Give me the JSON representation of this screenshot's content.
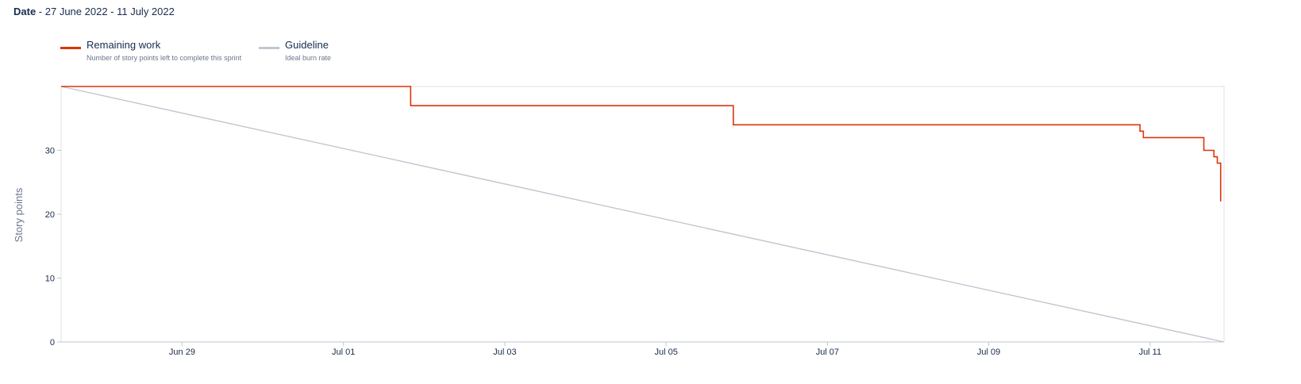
{
  "header": {
    "date_label": "Date",
    "separator": " - ",
    "date_range": "27 June 2022 - 11 July 2022"
  },
  "legend": [
    {
      "title": "Remaining work",
      "description": "Number of story points left to complete this sprint",
      "color": "#de350b"
    },
    {
      "title": "Guideline",
      "description": "Ideal burn rate",
      "color": "#c1c7d0"
    }
  ],
  "chart_data": {
    "type": "line",
    "ylabel": "Story points",
    "xlabel": "",
    "x_range": [
      "2022-06-27T12:00",
      "2022-07-11T22:00"
    ],
    "ylim": [
      0,
      40
    ],
    "y_ticks": [
      0,
      10,
      20,
      30
    ],
    "x_ticks": [
      {
        "date": "2022-06-29",
        "label": "Jun 29"
      },
      {
        "date": "2022-07-01",
        "label": "Jul 01"
      },
      {
        "date": "2022-07-03",
        "label": "Jul 03"
      },
      {
        "date": "2022-07-05",
        "label": "Jul 05"
      },
      {
        "date": "2022-07-07",
        "label": "Jul 07"
      },
      {
        "date": "2022-07-09",
        "label": "Jul 09"
      },
      {
        "date": "2022-07-11",
        "label": "Jul 11"
      }
    ],
    "grid": false,
    "series": [
      {
        "name": "Remaining work",
        "color": "#de350b",
        "step": true,
        "points": [
          {
            "x": "2022-06-27T12:00",
            "y": 40
          },
          {
            "x": "2022-07-01T20:00",
            "y": 37
          },
          {
            "x": "2022-07-05T20:00",
            "y": 34
          },
          {
            "x": "2022-07-10T21:00",
            "y": 33
          },
          {
            "x": "2022-07-10T22:00",
            "y": 32
          },
          {
            "x": "2022-07-11T16:00",
            "y": 30
          },
          {
            "x": "2022-07-11T19:00",
            "y": 29
          },
          {
            "x": "2022-07-11T20:00",
            "y": 28
          },
          {
            "x": "2022-07-11T21:00",
            "y": 22
          }
        ]
      },
      {
        "name": "Guideline",
        "color": "#c1c7d0",
        "step": false,
        "points": [
          {
            "x": "2022-06-27T12:00",
            "y": 40
          },
          {
            "x": "2022-07-11T22:00",
            "y": 0
          }
        ]
      }
    ]
  }
}
